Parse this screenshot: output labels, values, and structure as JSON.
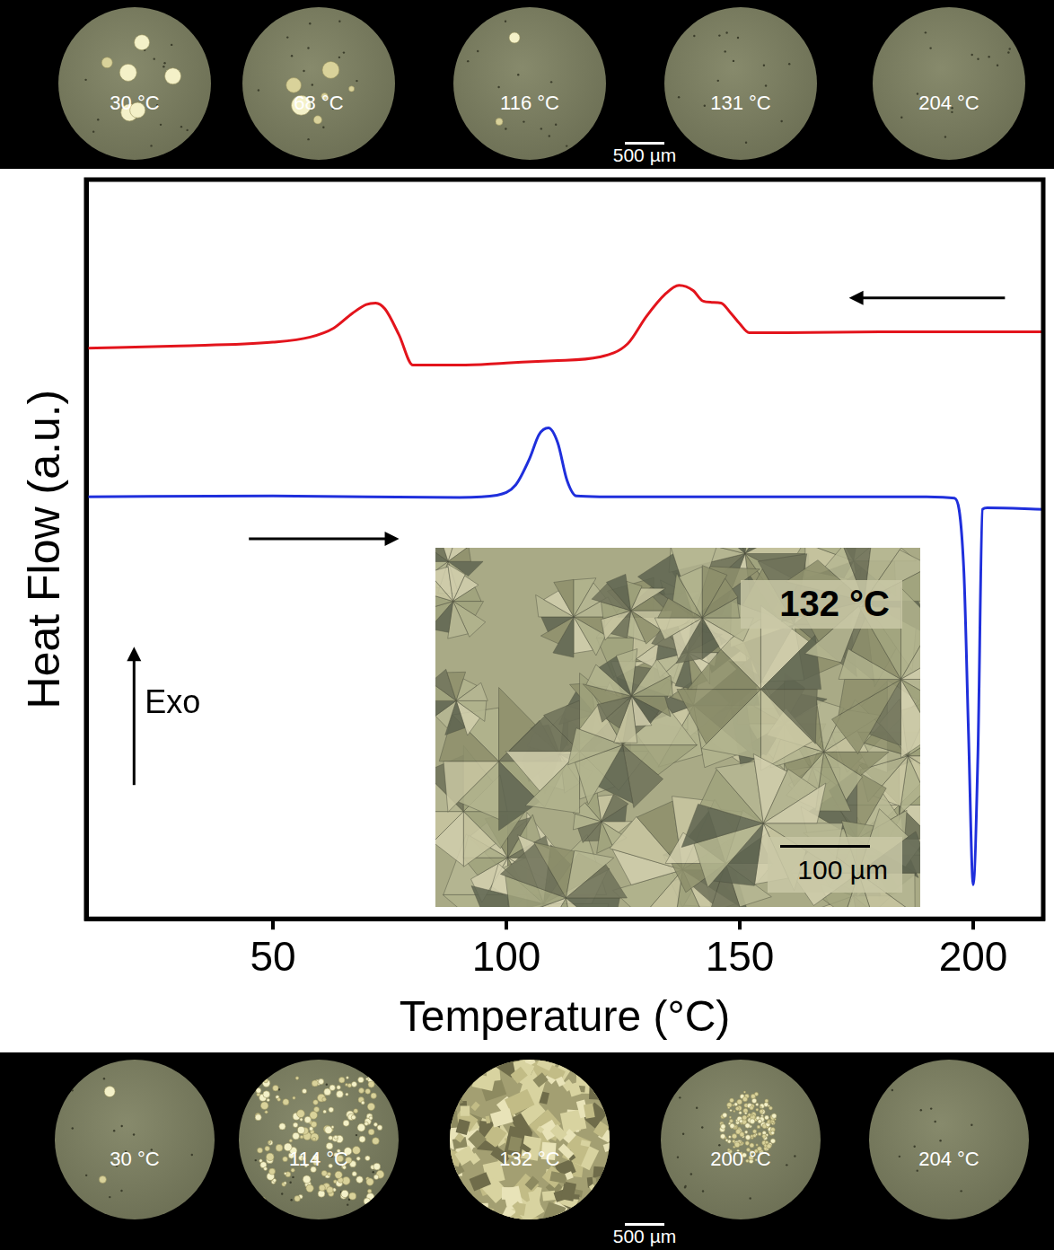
{
  "chart_data": {
    "type": "line",
    "x_label": "Temperature (°C)",
    "y_label": "Heat Flow (a.u.)",
    "xlim": [
      10,
      215
    ],
    "xticks": [
      50,
      100,
      150,
      200
    ],
    "ylim": [
      0,
      100
    ],
    "tick_labels": "x",
    "grid": false,
    "annotations": [
      "Exo"
    ],
    "series": [
      {
        "color": "#e3141c",
        "x": [
          10,
          30,
          50,
          58,
          63,
          67,
          70,
          72,
          74,
          77,
          80,
          90,
          100,
          110,
          120,
          126,
          130,
          134,
          137,
          140,
          142,
          144,
          146,
          148,
          150,
          152,
          160,
          180,
          200,
          215
        ],
        "values": [
          77.2,
          77.5,
          78.0,
          78.7,
          79.9,
          81.9,
          83.1,
          83.3,
          82.5,
          79.0,
          74.9,
          74.9,
          75.2,
          75.5,
          76.0,
          77.8,
          81.5,
          84.5,
          85.7,
          85.0,
          83.6,
          83.4,
          83.3,
          82.0,
          80.5,
          79.3,
          79.3,
          79.4,
          79.4,
          79.4
        ]
      },
      {
        "color": "#1f2fdc",
        "x": [
          10,
          50,
          90,
          98,
          102,
          105,
          107,
          109,
          111,
          113,
          115,
          120,
          150,
          190,
          196,
          198,
          199,
          200,
          201,
          202,
          203,
          215
        ],
        "values": [
          57.1,
          57.2,
          57.0,
          57.3,
          58.7,
          62.3,
          65.5,
          66.4,
          64.4,
          59.3,
          57.2,
          57.1,
          57.1,
          57.1,
          56.9,
          47.0,
          25.0,
          4.6,
          22.0,
          55.4,
          55.6,
          55.4
        ]
      }
    ],
    "inset": {
      "label": "132 °C",
      "scale_bar": "100 µm"
    }
  },
  "micrographs": {
    "top": {
      "labels": [
        "30 °C",
        "68 °C",
        "116 °C",
        "131 °C",
        "204 °C"
      ],
      "scale_bar": "500 µm"
    },
    "bottom": {
      "labels": [
        "30 °C",
        "114 °C",
        "132 °C",
        "200 °C",
        "204 °C"
      ],
      "scale_bar": "500 µm"
    }
  }
}
